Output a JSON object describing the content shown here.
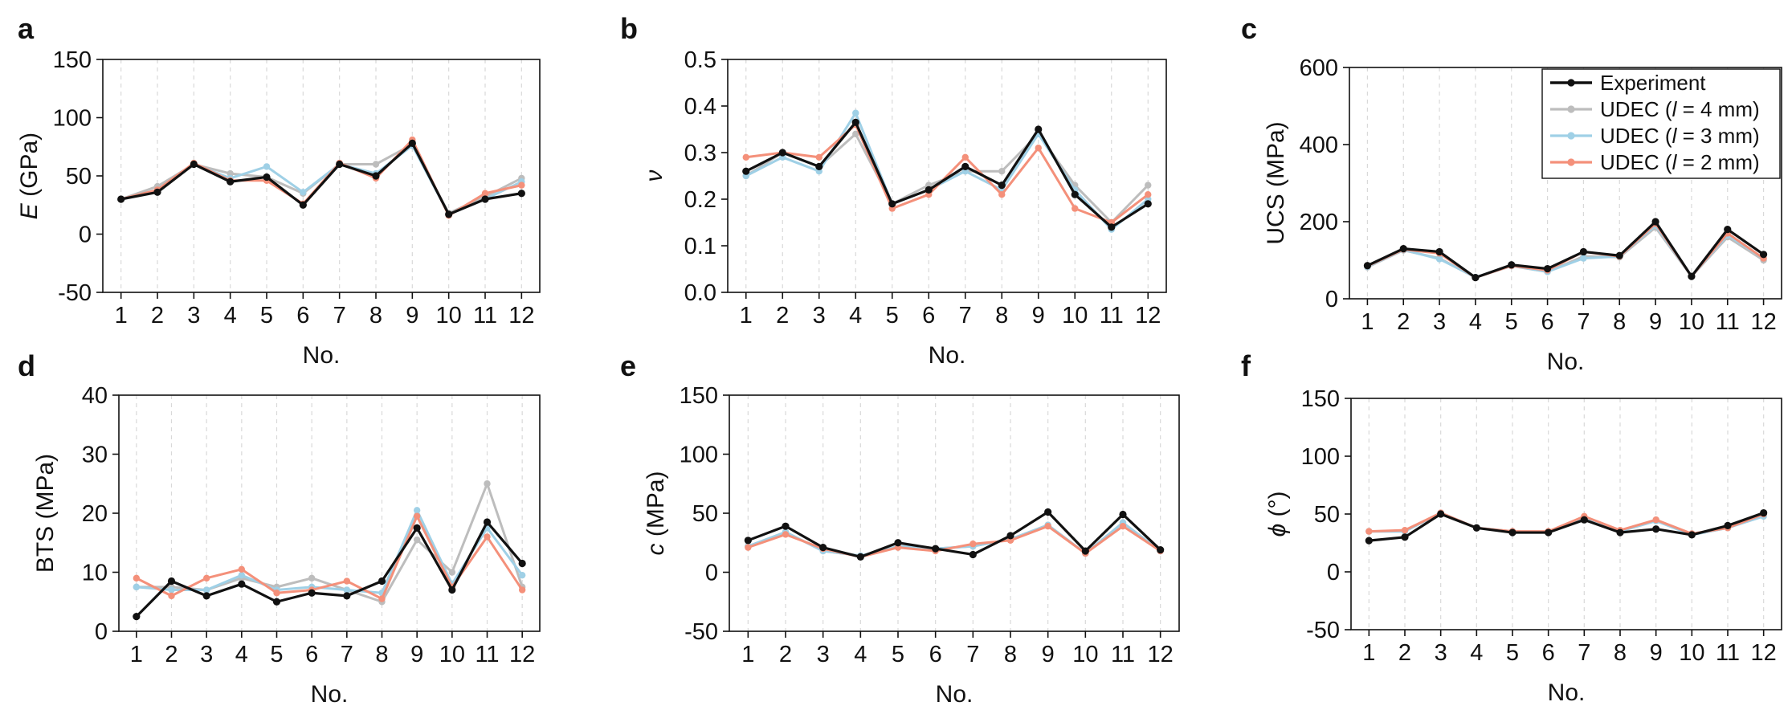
{
  "chart_data": [
    {
      "type": "line",
      "panel_letter": "a",
      "ylabel_symbol": "E",
      "ylabel_rest": " (GPa)",
      "xlabel": "No.",
      "categories": [
        "1",
        "2",
        "3",
        "4",
        "5",
        "6",
        "7",
        "8",
        "9",
        "10",
        "11",
        "12"
      ],
      "ylim": [
        -50,
        150
      ],
      "yticks": [
        -50,
        0,
        50,
        100,
        150
      ],
      "grid": "vertical dashed",
      "series": [
        {
          "name": "UDEC (l = 4 mm)",
          "values": [
            30,
            41,
            60,
            52,
            49,
            35,
            60,
            60,
            77,
            18,
            32,
            48
          ]
        },
        {
          "name": "UDEC (l = 3 mm)",
          "values": [
            30,
            37,
            60,
            48,
            58,
            36,
            60,
            52,
            76,
            17,
            30,
            45
          ]
        },
        {
          "name": "UDEC (l = 2 mm)",
          "values": [
            30,
            38,
            61,
            46,
            46,
            26,
            61,
            48,
            81,
            16,
            35,
            42
          ]
        },
        {
          "name": "Experiment",
          "values": [
            30,
            36,
            60,
            45,
            49,
            25,
            60,
            50,
            78,
            17,
            30,
            35
          ]
        }
      ]
    },
    {
      "type": "line",
      "panel_letter": "b",
      "ylabel_symbol": "ν",
      "ylabel_rest": "",
      "xlabel": "No.",
      "categories": [
        "1",
        "2",
        "3",
        "4",
        "5",
        "6",
        "7",
        "8",
        "9",
        "10",
        "11",
        "12"
      ],
      "ylim": [
        0,
        0.5
      ],
      "yticks": [
        0.0,
        0.1,
        0.2,
        0.3,
        0.4,
        0.5
      ],
      "ytick_decimals": 1,
      "grid": "vertical dashed",
      "series": [
        {
          "name": "UDEC (l = 4 mm)",
          "values": [
            0.25,
            0.3,
            0.27,
            0.34,
            0.19,
            0.23,
            0.26,
            0.26,
            0.34,
            0.23,
            0.15,
            0.23
          ]
        },
        {
          "name": "UDEC (l = 3 mm)",
          "values": [
            0.25,
            0.29,
            0.26,
            0.385,
            0.19,
            0.22,
            0.26,
            0.22,
            0.34,
            0.22,
            0.135,
            0.2
          ]
        },
        {
          "name": "UDEC (l = 2 mm)",
          "values": [
            0.29,
            0.3,
            0.29,
            0.36,
            0.18,
            0.21,
            0.29,
            0.21,
            0.31,
            0.18,
            0.15,
            0.21
          ]
        },
        {
          "name": "Experiment",
          "values": [
            0.26,
            0.3,
            0.27,
            0.365,
            0.19,
            0.22,
            0.27,
            0.23,
            0.35,
            0.21,
            0.14,
            0.19
          ]
        }
      ]
    },
    {
      "type": "line",
      "panel_letter": "c",
      "ylabel_symbol": "",
      "ylabel_rest": "UCS (MPa)",
      "xlabel": "No.",
      "categories": [
        "1",
        "2",
        "3",
        "4",
        "5",
        "6",
        "7",
        "8",
        "9",
        "10",
        "11",
        "12"
      ],
      "ylim": [
        0,
        600
      ],
      "yticks": [
        0,
        200,
        400,
        600
      ],
      "grid": "vertical dashed",
      "legend_position": "top-right",
      "series": [
        {
          "name": "UDEC (l = 4 mm)",
          "values": [
            82,
            126,
            105,
            55,
            85,
            70,
            110,
            108,
            185,
            58,
            160,
            100
          ]
        },
        {
          "name": "UDEC (l = 3 mm)",
          "values": [
            83,
            127,
            103,
            56,
            86,
            70,
            105,
            110,
            190,
            58,
            165,
            105
          ]
        },
        {
          "name": "UDEC (l = 2 mm)",
          "values": [
            85,
            128,
            118,
            55,
            86,
            74,
            122,
            110,
            195,
            58,
            170,
            105
          ]
        },
        {
          "name": "Experiment",
          "values": [
            86,
            130,
            122,
            55,
            88,
            78,
            122,
            112,
            200,
            58,
            180,
            115
          ]
        }
      ]
    },
    {
      "type": "line",
      "panel_letter": "d",
      "ylabel_symbol": "",
      "ylabel_rest": "BTS (MPa)",
      "xlabel": "No.",
      "categories": [
        "1",
        "2",
        "3",
        "4",
        "5",
        "6",
        "7",
        "8",
        "9",
        "10",
        "11",
        "12"
      ],
      "ylim": [
        0,
        40
      ],
      "yticks": [
        0,
        10,
        20,
        30,
        40
      ],
      "grid": "vertical dashed",
      "series": [
        {
          "name": "UDEC (l = 4 mm)",
          "values": [
            7.5,
            7.5,
            7.0,
            9.0,
            7.5,
            9.0,
            7.0,
            5.0,
            15.5,
            10.0,
            25.0,
            7.5
          ]
        },
        {
          "name": "UDEC (l = 3 mm)",
          "values": [
            7.5,
            7.0,
            7.0,
            9.5,
            7.0,
            7.5,
            7.0,
            6.5,
            20.5,
            8.0,
            17.5,
            9.5
          ]
        },
        {
          "name": "UDEC (l = 2 mm)",
          "values": [
            9.0,
            6.0,
            9.0,
            10.5,
            6.5,
            7.0,
            8.5,
            5.5,
            19.5,
            7.5,
            16.0,
            7.0
          ]
        },
        {
          "name": "Experiment",
          "values": [
            2.5,
            8.5,
            6.0,
            8.0,
            5.0,
            6.5,
            6.0,
            8.5,
            17.5,
            7.0,
            18.5,
            11.5
          ]
        }
      ]
    },
    {
      "type": "line",
      "panel_letter": "e",
      "ylabel_symbol": "c",
      "ylabel_rest": " (MPa)",
      "xlabel": "No.",
      "categories": [
        "1",
        "2",
        "3",
        "4",
        "5",
        "6",
        "7",
        "8",
        "9",
        "10",
        "11",
        "12"
      ],
      "ylim": [
        -50,
        150
      ],
      "yticks": [
        -50,
        0,
        50,
        100,
        150
      ],
      "grid": "vertical dashed",
      "series": [
        {
          "name": "UDEC (l = 4 mm)",
          "values": [
            22,
            34,
            18,
            14,
            22,
            20,
            22,
            28,
            40,
            16,
            42,
            18
          ]
        },
        {
          "name": "UDEC (l = 3 mm)",
          "values": [
            22,
            34,
            18,
            14,
            22,
            20,
            22,
            28,
            40,
            16,
            42,
            18
          ]
        },
        {
          "name": "UDEC (l = 2 mm)",
          "values": [
            21,
            32,
            20,
            13,
            21,
            18,
            24,
            27,
            39,
            16,
            39,
            18
          ]
        },
        {
          "name": "Experiment",
          "values": [
            27,
            39,
            21,
            13,
            25,
            20,
            15,
            31,
            51,
            18,
            49,
            19
          ]
        }
      ]
    },
    {
      "type": "line",
      "panel_letter": "f",
      "ylabel_symbol": "ϕ",
      "ylabel_rest": " (°)",
      "xlabel": "No.",
      "categories": [
        "1",
        "2",
        "3",
        "4",
        "5",
        "6",
        "7",
        "8",
        "9",
        "10",
        "11",
        "12"
      ],
      "ylim": [
        -50,
        150
      ],
      "yticks": [
        -50,
        0,
        50,
        100,
        150
      ],
      "grid": "vertical dashed",
      "series": [
        {
          "name": "UDEC (l = 4 mm)",
          "values": [
            35,
            35,
            51,
            38,
            35,
            34,
            47,
            35,
            45,
            32,
            38,
            50
          ]
        },
        {
          "name": "UDEC (l = 3 mm)",
          "values": [
            35,
            35,
            51,
            38,
            35,
            34,
            47,
            35,
            44,
            32,
            38,
            48
          ]
        },
        {
          "name": "UDEC (l = 2 mm)",
          "values": [
            35,
            36,
            51,
            38,
            35,
            35,
            48,
            36,
            45,
            33,
            38,
            50
          ]
        },
        {
          "name": "Experiment",
          "values": [
            27,
            30,
            50,
            38,
            34,
            34,
            45,
            34,
            37,
            32,
            40,
            51
          ]
        }
      ]
    }
  ],
  "legend": {
    "entries": [
      {
        "series": "Experiment",
        "prefix": "Experiment",
        "italic": "",
        "suffix": ""
      },
      {
        "series": "UDEC (l = 4 mm)",
        "prefix": "UDEC (",
        "italic": "l",
        "suffix": " = 4 mm)"
      },
      {
        "series": "UDEC (l = 3 mm)",
        "prefix": "UDEC (",
        "italic": "l",
        "suffix": " = 3 mm)"
      },
      {
        "series": "UDEC (l = 2 mm)",
        "prefix": "UDEC (",
        "italic": "l",
        "suffix": " = 2 mm)"
      }
    ]
  },
  "colors": {
    "Experiment": "#111111",
    "UDEC (l = 4 mm)": "#bdbdbd",
    "UDEC (l = 3 mm)": "#9fd0e6",
    "UDEC (l = 2 mm)": "#f4907a"
  }
}
